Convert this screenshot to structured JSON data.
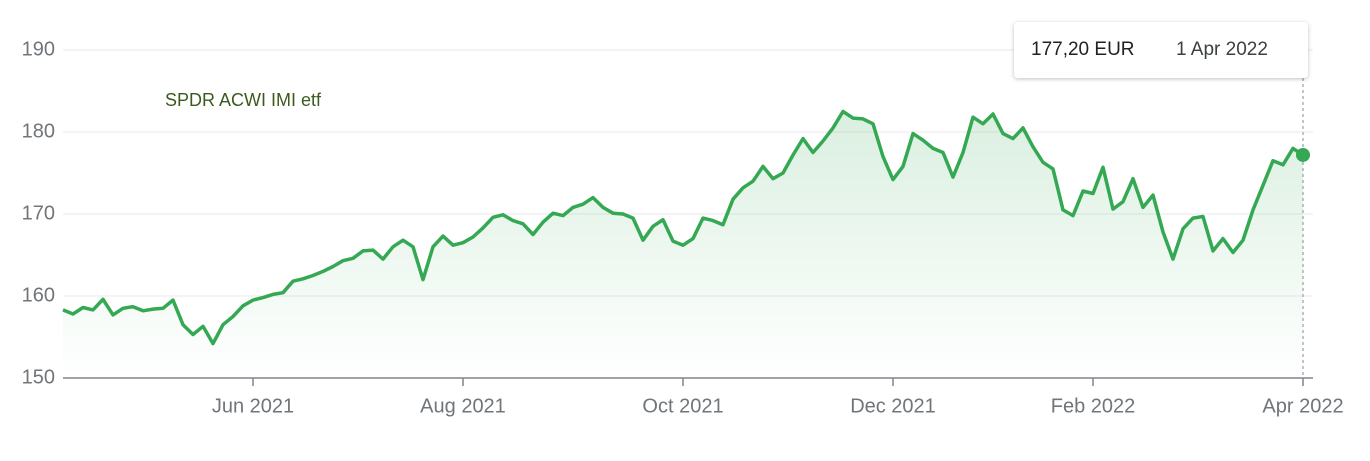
{
  "chart_data": {
    "type": "line",
    "categories": [
      null,
      null,
      null,
      null,
      null,
      null,
      null,
      null,
      null,
      null,
      null,
      null,
      null,
      null,
      null,
      null,
      null,
      null,
      null,
      "Jun 2021",
      null,
      null,
      null,
      null,
      null,
      null,
      null,
      null,
      null,
      null,
      null,
      null,
      null,
      null,
      null,
      null,
      null,
      null,
      null,
      null,
      "Aug 2021",
      null,
      null,
      null,
      null,
      null,
      null,
      null,
      null,
      null,
      null,
      null,
      null,
      null,
      null,
      null,
      null,
      null,
      null,
      null,
      null,
      null,
      "Oct 2021",
      null,
      null,
      null,
      null,
      null,
      null,
      null,
      null,
      null,
      null,
      null,
      null,
      null,
      null,
      null,
      null,
      null,
      null,
      null,
      null,
      "Dec 2021",
      null,
      null,
      null,
      null,
      null,
      null,
      null,
      null,
      null,
      null,
      null,
      null,
      null,
      null,
      null,
      null,
      null,
      null,
      null,
      "Feb 2022",
      null,
      null,
      null,
      null,
      null,
      null,
      null,
      null,
      null,
      null,
      null,
      null,
      null,
      null,
      null,
      null,
      null,
      null,
      null,
      null,
      "Apr 2022"
    ],
    "series": [
      {
        "name": "SPDR ACWI IMI etf",
        "color": "#34a853",
        "values": [
          158.3,
          157.8,
          158.6,
          158.3,
          159.6,
          157.7,
          158.5,
          158.7,
          158.2,
          158.4,
          158.5,
          159.5,
          156.5,
          155.3,
          156.3,
          154.2,
          156.5,
          157.5,
          158.8,
          159.5,
          159.8,
          160.2,
          160.4,
          161.8,
          162.1,
          162.5,
          163.0,
          163.6,
          164.3,
          164.6,
          165.5,
          165.6,
          164.5,
          166.0,
          166.8,
          166.0,
          162.0,
          166.0,
          167.3,
          166.2,
          166.5,
          167.2,
          168.3,
          169.6,
          169.9,
          169.2,
          168.8,
          167.5,
          169.0,
          170.1,
          169.8,
          170.8,
          171.2,
          172.0,
          170.8,
          170.1,
          170.0,
          169.5,
          166.8,
          168.5,
          169.3,
          166.7,
          166.2,
          167.0,
          169.5,
          169.2,
          168.7,
          171.8,
          173.2,
          174.0,
          175.8,
          174.3,
          175.0,
          177.2,
          179.2,
          177.5,
          178.9,
          180.5,
          182.5,
          181.7,
          181.6,
          181.0,
          177.0,
          174.2,
          175.8,
          179.8,
          179.0,
          178.0,
          177.5,
          174.5,
          177.5,
          181.8,
          181.0,
          182.2,
          179.8,
          179.2,
          180.5,
          178.2,
          176.3,
          175.5,
          170.5,
          169.8,
          172.8,
          172.5,
          175.7,
          170.6,
          171.5,
          174.3,
          170.8,
          172.3,
          167.8,
          164.5,
          168.2,
          169.5,
          169.7,
          165.5,
          167.0,
          165.3,
          166.8,
          170.5,
          173.5,
          176.5,
          176.0,
          178.0,
          177.2
        ]
      }
    ],
    "ylim": [
      150,
      190
    ],
    "yticks": [
      150,
      160,
      170,
      180,
      190
    ],
    "grid": true,
    "tooltip": {
      "value_label": "177,20 EUR",
      "date": "1 Apr 2022"
    }
  }
}
